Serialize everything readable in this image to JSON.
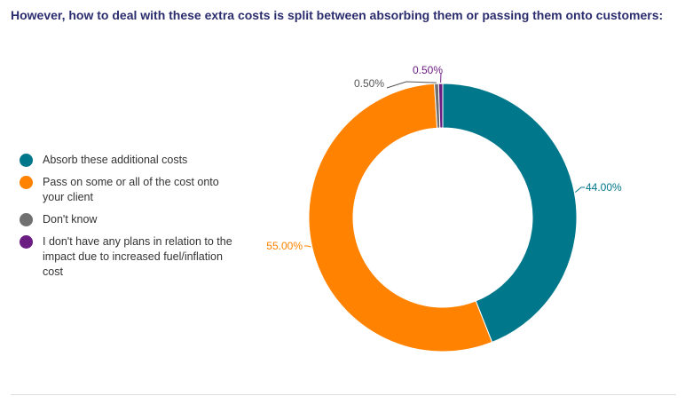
{
  "header": {
    "title": "However, how to deal with these extra costs is split between absorbing them or passing them onto customers:"
  },
  "chart_data": {
    "type": "pie",
    "donut": true,
    "legend_position": "left",
    "categories": [
      "Absorb these additional costs",
      "Pass on some or all of the cost onto your client",
      "Don't know",
      "I don't have any plans in relation to the impact due to increased fuel/inflation cost"
    ],
    "values": [
      44.0,
      55.0,
      0.5,
      0.5
    ],
    "data_labels": [
      "44.00%",
      "55.00%",
      "0.50%",
      "0.50%"
    ],
    "colors": [
      "#00778b",
      "#ff8200",
      "#707070",
      "#6b1d82"
    ]
  }
}
